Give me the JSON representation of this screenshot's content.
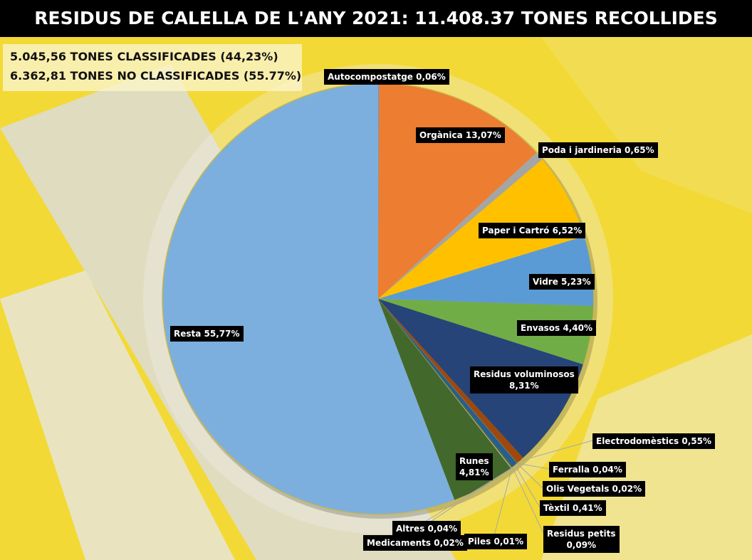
{
  "title": "RESIDUS DE CALELLA DE L'ANY 2021: 11.408.37 TONES RECOLLIDES",
  "summary": {
    "classified": "5.045,56 TONES CLASSIFICADES (44,23%)",
    "unclassified": "6.362,81 TONES NO CLASSIFICADES (55.77%)"
  },
  "chart_data": {
    "type": "pie",
    "title": "RESIDUS DE CALELLA DE L'ANY 2021: 11.408.37 TONES RECOLLIDES",
    "unit": "%",
    "slices": [
      {
        "label": "Autocompostatge 0,06%",
        "value": 0.06,
        "color": "#5b9bd5"
      },
      {
        "label": "Orgànica 13,07%",
        "value": 13.07,
        "color": "#ed7d31"
      },
      {
        "label": "Poda i jardineria 0,65%",
        "value": 0.65,
        "color": "#a5a5a5"
      },
      {
        "label": "Paper i Cartró 6,52%",
        "value": 6.52,
        "color": "#ffc000"
      },
      {
        "label": "Vidre 5,23%",
        "value": 5.23,
        "color": "#5b9bd5"
      },
      {
        "label": "Envasos 4,40%",
        "value": 4.4,
        "color": "#70ad47"
      },
      {
        "label": "Residus voluminosos 8,31%",
        "value": 8.31,
        "color": "#264478"
      },
      {
        "label": "Electrodomèstics 0,55%",
        "value": 0.55,
        "color": "#9e480e"
      },
      {
        "label": "Ferralla 0,04%",
        "value": 0.04,
        "color": "#636363"
      },
      {
        "label": "Olis Vegetals 0,02%",
        "value": 0.02,
        "color": "#997300"
      },
      {
        "label": "Tèxtil 0,41%",
        "value": 0.41,
        "color": "#255e91"
      },
      {
        "label": "Residus petits 0,09%",
        "value": 0.09,
        "color": "#43682b"
      },
      {
        "label": "Piles 0,01%",
        "value": 0.01,
        "color": "#698ed0"
      },
      {
        "label": "Medicaments 0,02%",
        "value": 0.02,
        "color": "#f1975a"
      },
      {
        "label": "Altres 0,04%",
        "value": 0.04,
        "color": "#b7b7b7"
      },
      {
        "label": "Runes 4,81%",
        "value": 4.81,
        "color": "#43682b"
      },
      {
        "label": "Resta 55,77%",
        "value": 55.77,
        "color": "#7cafdd"
      }
    ]
  }
}
